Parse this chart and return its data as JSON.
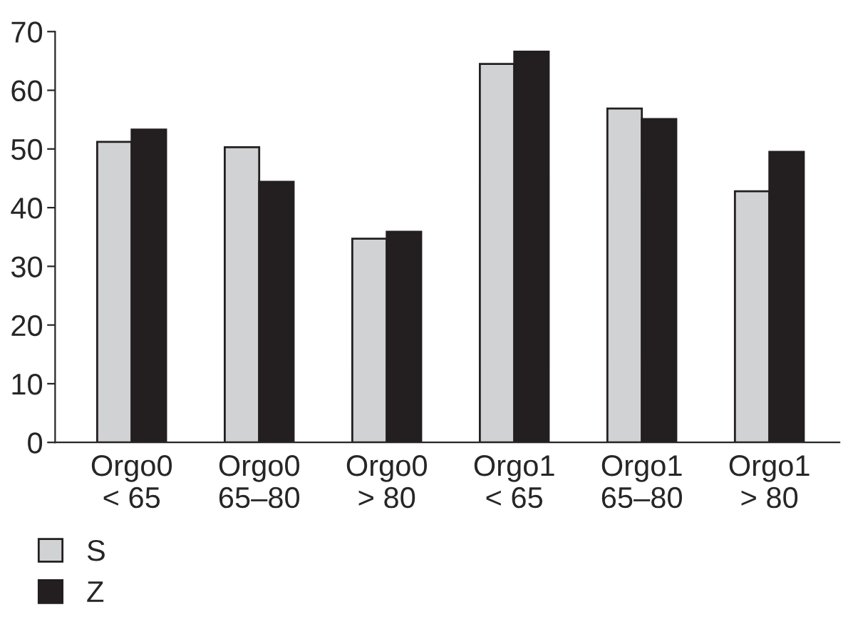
{
  "chart_data": {
    "type": "bar",
    "categories": [
      "Orgo0\n< 65",
      "Orgo0\n65–80",
      "Orgo0\n> 80",
      "Orgo1\n< 65",
      "Orgo1\n65–80",
      "Orgo1\n> 80"
    ],
    "series": [
      {
        "name": "S",
        "color": "#d1d2d4",
        "values": [
          51.2,
          50.3,
          34.7,
          64.5,
          56.9,
          42.8
        ]
      },
      {
        "name": "Z",
        "color": "#231f20",
        "values": [
          53.3,
          44.4,
          35.9,
          66.6,
          55.1,
          49.5
        ]
      }
    ],
    "ylim": [
      0,
      70
    ],
    "yticks": [
      0,
      10,
      20,
      30,
      40,
      50,
      60,
      70
    ],
    "grid": false,
    "legend": "bottom left"
  }
}
